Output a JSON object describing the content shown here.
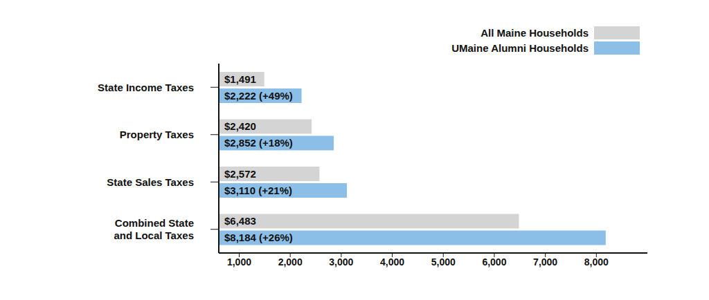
{
  "chart_data": {
    "type": "bar",
    "orientation": "horizontal",
    "categories": [
      "State Income Taxes",
      "Property Taxes",
      "State Sales Taxes",
      "Combined State and Local Taxes"
    ],
    "series": [
      {
        "name": "All Maine Households",
        "color": "#d4d4d4",
        "values": [
          1491,
          2420,
          2572,
          6483
        ],
        "value_labels": [
          "$1,491",
          "$2,420",
          "$2,572",
          "$6,483"
        ]
      },
      {
        "name": "UMaine Alumni Households",
        "color": "#8cbfe8",
        "values": [
          2222,
          2852,
          3110,
          8184
        ],
        "value_labels": [
          "$2,222 (+49%)",
          "$2,852 (+18%)",
          "$3,110 (+21%)",
          "$8,184 (+26%)"
        ]
      }
    ],
    "xlim": [
      600,
      9000
    ],
    "xticks": [
      {
        "value": 1000,
        "label": "1,000"
      },
      {
        "value": 2000,
        "label": "2,000"
      },
      {
        "value": 3000,
        "label": "3,000"
      },
      {
        "value": 4000,
        "label": "4,000"
      },
      {
        "value": 5000,
        "label": "5,000"
      },
      {
        "value": 6000,
        "label": "6,000"
      },
      {
        "value": 7000,
        "label": "7,000"
      },
      {
        "value": 8000,
        "label": "8,000"
      }
    ],
    "data_labels": true,
    "legend": "top-right",
    "grid": false
  }
}
